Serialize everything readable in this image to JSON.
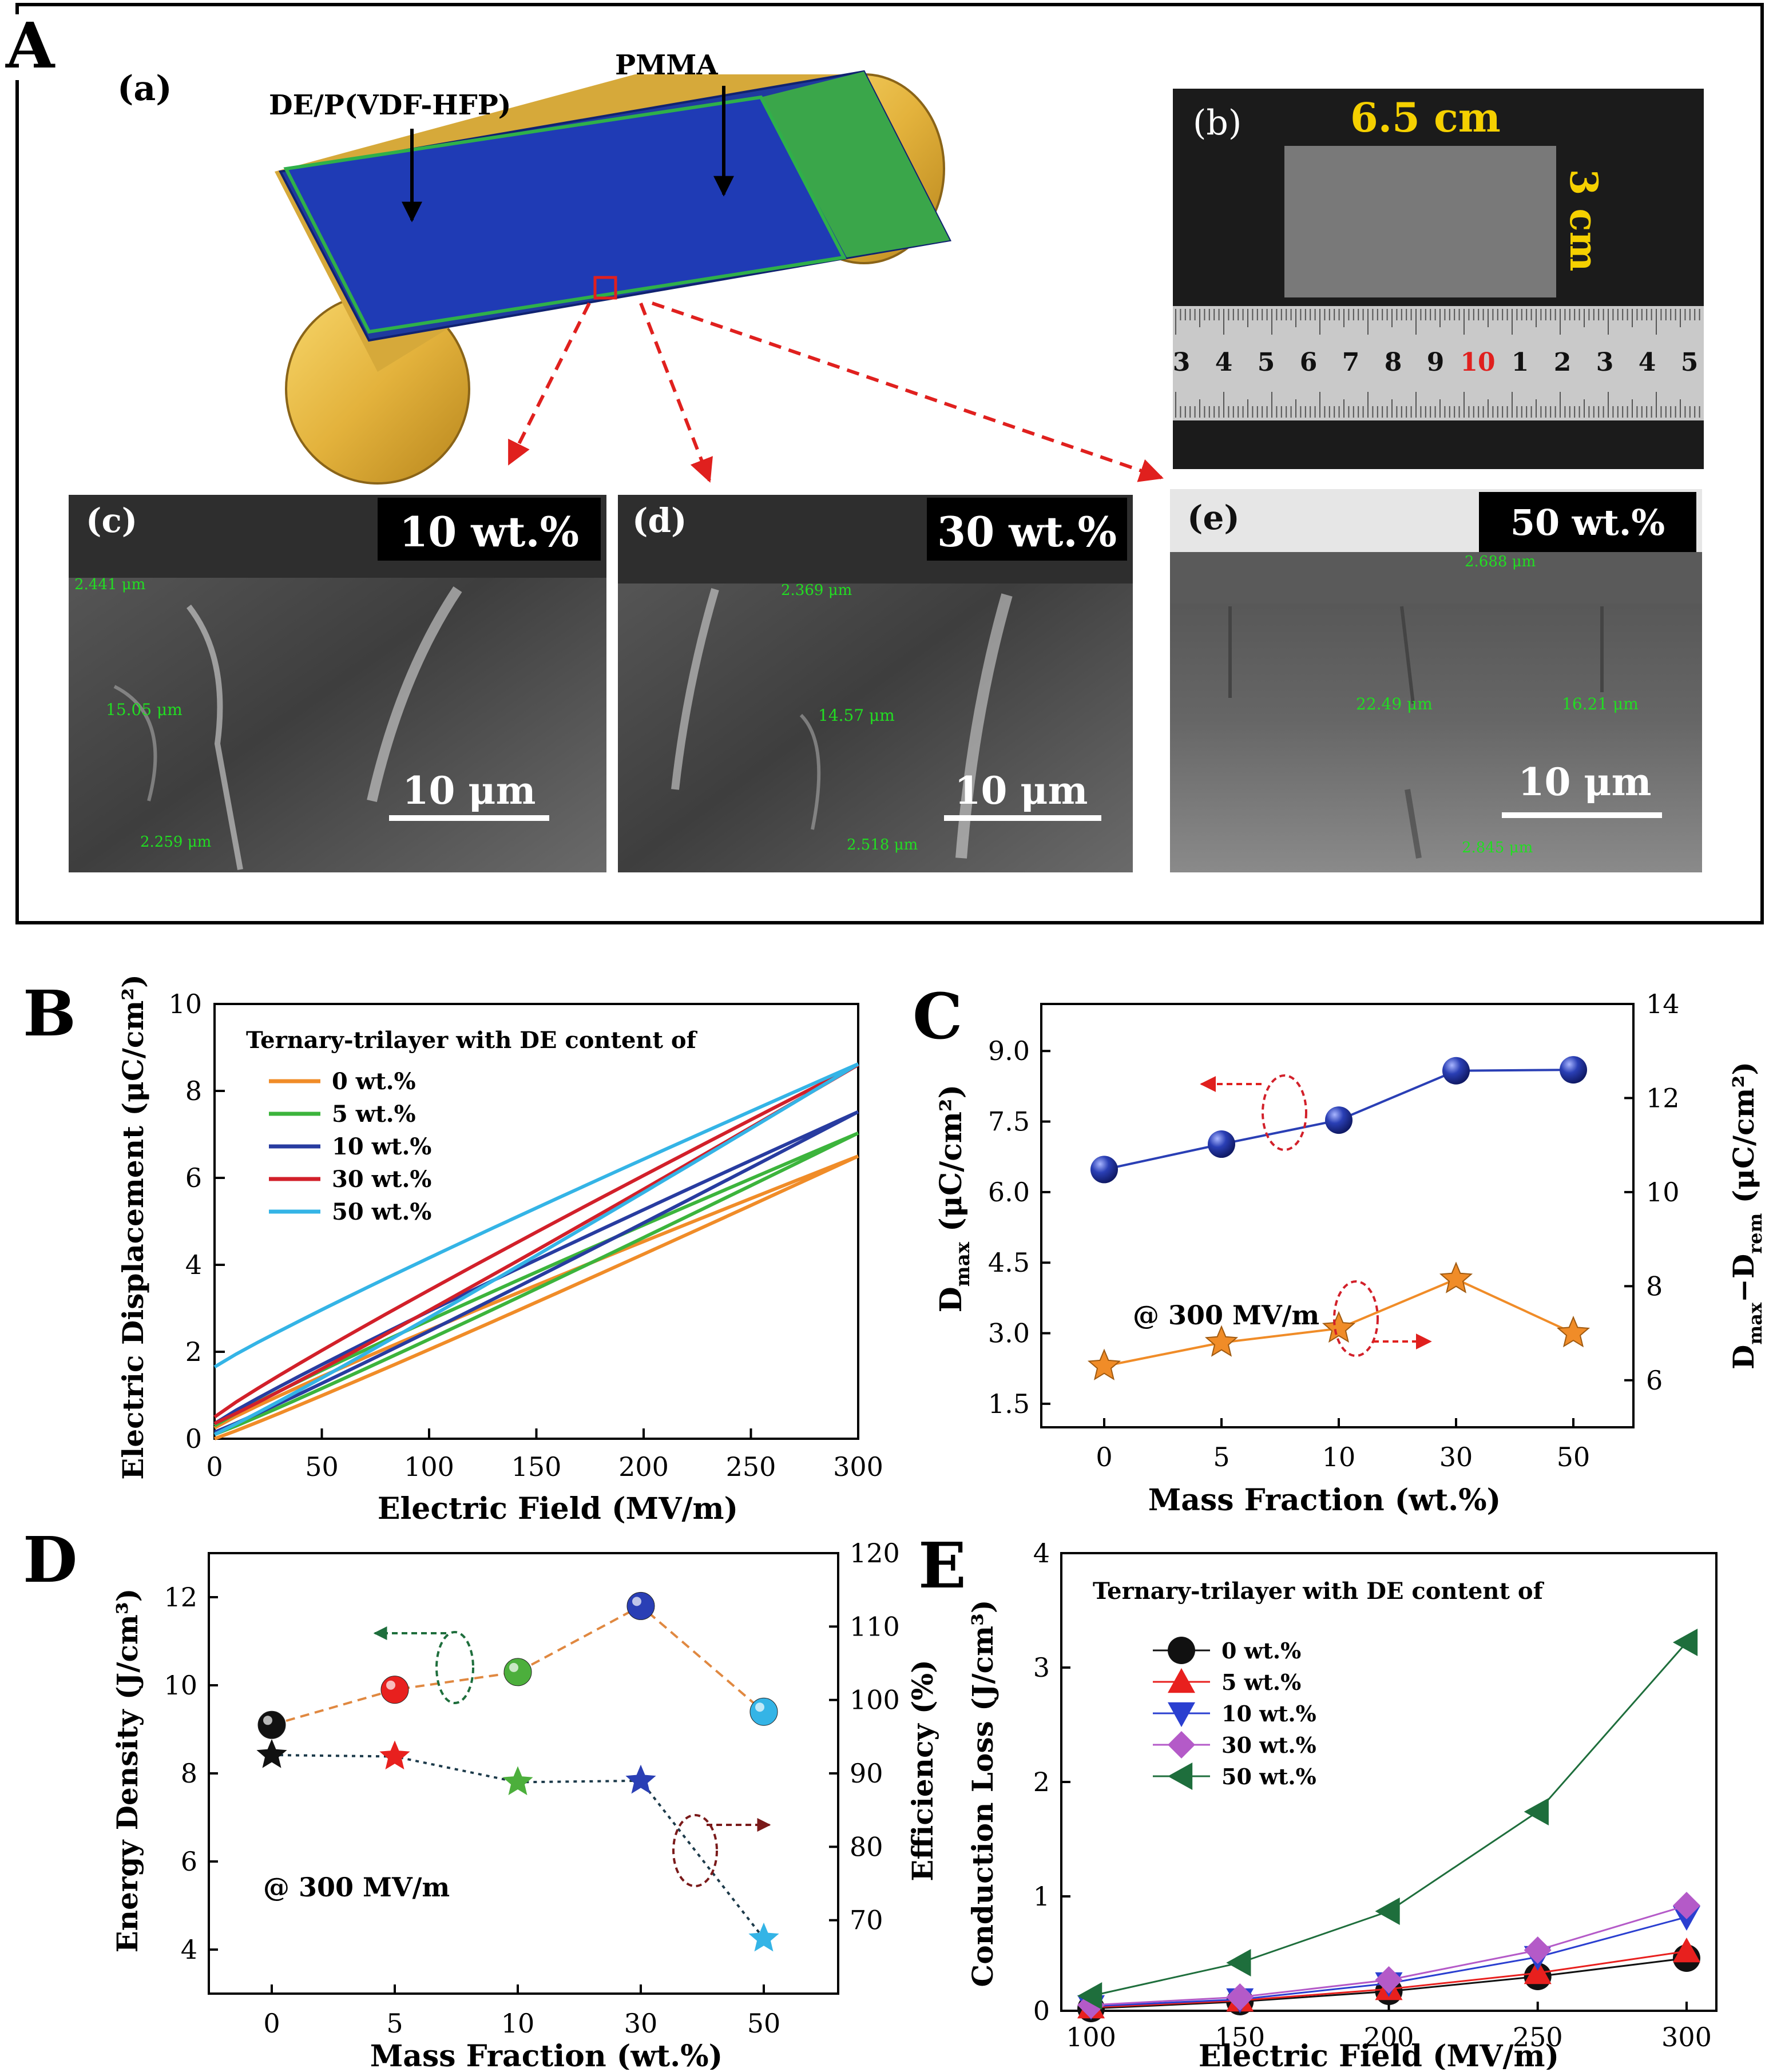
{
  "panel_labels": {
    "A": "A",
    "B": "B",
    "C": "C",
    "D": "D",
    "E": "E"
  },
  "panel_a": {
    "sub_a": "(a)",
    "sub_b": "(b)",
    "sub_c": "(c)",
    "sub_d": "(d)",
    "sub_e": "(e)",
    "label_de": "DE/P(VDF-HFP)",
    "label_pmma": "PMMA",
    "photo_width": "6.5 cm",
    "photo_height": "3 cm",
    "ruler_digits": [
      "3",
      "4",
      "5",
      "6",
      "7",
      "8",
      "9",
      "10",
      "1",
      "2",
      "3",
      "4",
      "5"
    ],
    "sem": [
      {
        "content": "10 wt.%",
        "scale": "10 μm",
        "m_top": "2.441 μm",
        "m_mid": "15.05 μm",
        "m_bot": "2.259 μm"
      },
      {
        "content": "30 wt.%",
        "scale": "10 μm",
        "m_top": "2.369 μm",
        "m_mid": "14.57 μm",
        "m_bot": "2.518 μm"
      },
      {
        "content": "50 wt.%",
        "scale": "10 μm",
        "m_top": "2.688 μm",
        "m_mid": "22.49 μm",
        "m_mid2": "16.21 μm",
        "m_bot": "2.845 μm"
      }
    ]
  },
  "colors": {
    "c0": "#f08c28",
    "c5": "#3cb43c",
    "c10": "#283ca0",
    "c30": "#d2202a",
    "c50": "#34b4e6",
    "blue_sphere": "#2a3fb5",
    "orange_star": "#f08c28",
    "dark_green": "#1e6e3c",
    "violet": "#b45ac8"
  },
  "chart_data": [
    {
      "panel": "B",
      "type": "line",
      "xlabel": "Electric Field (MV/m)",
      "ylabel": "Electric Displacement (μC/cm²)",
      "xlim": [
        0,
        300
      ],
      "ylim": [
        0,
        10
      ],
      "xticks": [
        "0",
        "50",
        "100",
        "150",
        "200",
        "250",
        "300"
      ],
      "yticks": [
        "0",
        "2",
        "4",
        "6",
        "8",
        "10"
      ],
      "legend_title": "Ternary-trilayer  with DE content of",
      "series": [
        {
          "name": "0 wt.%",
          "dmax": 6.5,
          "dr_up": 0.0,
          "dr_down": 0.25
        },
        {
          "name": "5 wt.%",
          "dmax": 7.03,
          "dr_up": 0.1,
          "dr_down": 0.3
        },
        {
          "name": "10 wt.%",
          "dmax": 7.52,
          "dr_up": 0.15,
          "dr_down": 0.35
        },
        {
          "name": "30 wt.%",
          "dmax": 8.6,
          "dr_up": 0.35,
          "dr_down": 0.5
        },
        {
          "name": "50 wt.%",
          "dmax": 8.62,
          "dr_up": 0.1,
          "dr_down": 1.65
        }
      ]
    },
    {
      "panel": "C",
      "type": "line",
      "xlabel": "Mass Fraction (wt.%)",
      "ylabel_main": "D",
      "ylabel_sub": "max",
      "ylabel_unit": " (μC/cm²)",
      "y2label_a": "D",
      "y2label_sub1": "max",
      "y2label_mid": "−D",
      "y2label_sub2": "rem",
      "y2label_unit": " (μC/cm²)",
      "categories": [
        "0",
        "5",
        "10",
        "30",
        "50"
      ],
      "ylim": [
        1,
        10
      ],
      "yticks": [
        "1.5",
        "3.0",
        "4.5",
        "6.0",
        "7.5",
        "9.0"
      ],
      "y2lim": [
        5,
        14
      ],
      "y2ticks": [
        "6",
        "8",
        "10",
        "12",
        "14"
      ],
      "annotation": "@ 300 MV/m",
      "series": [
        {
          "name": "Dmax",
          "axis": "left",
          "values": [
            6.48,
            7.02,
            7.53,
            8.58,
            8.6
          ]
        },
        {
          "name": "Dmax-Drem",
          "axis": "right",
          "values": [
            6.3,
            6.8,
            7.1,
            8.15,
            7.0
          ]
        }
      ]
    },
    {
      "panel": "D",
      "type": "scatter",
      "xlabel": "Mass Fraction (wt.%)",
      "ylabel": "Energy Density (J/cm³)",
      "y2label": "Efficiency (%)",
      "categories": [
        "0",
        "5",
        "10",
        "30",
        "50"
      ],
      "ylim": [
        3,
        13
      ],
      "yticks": [
        "4",
        "6",
        "8",
        "10",
        "12"
      ],
      "y2lim": [
        60,
        120
      ],
      "y2ticks": [
        "70",
        "80",
        "90",
        "100",
        "110",
        "120"
      ],
      "annotation": "@ 300 MV/m",
      "series": [
        {
          "name": "Energy Density",
          "axis": "left",
          "values": [
            9.1,
            9.9,
            10.3,
            11.8,
            9.4
          ]
        },
        {
          "name": "Efficiency",
          "axis": "right",
          "values": [
            92.5,
            92.3,
            88.8,
            89.0,
            67.5
          ]
        }
      ],
      "point_colors": [
        "#111111",
        "#e8201e",
        "#4caf3c",
        "#2a3fb5",
        "#34b4e6"
      ]
    },
    {
      "panel": "E",
      "type": "line",
      "xlabel": "Electric Field (MV/m)",
      "ylabel": "Conduction Loss (J/cm³)",
      "xlim": [
        90,
        310
      ],
      "ylim": [
        0,
        4
      ],
      "xticks": [
        "100",
        "150",
        "200",
        "250",
        "300"
      ],
      "yticks": [
        "0",
        "1",
        "2",
        "3",
        "4"
      ],
      "legend_title": "Ternary-trilayer  with DE content of",
      "x": [
        100,
        150,
        200,
        250,
        300
      ],
      "series": [
        {
          "name": "0 wt.%",
          "values": [
            0.02,
            0.08,
            0.17,
            0.3,
            0.46
          ]
        },
        {
          "name": "5 wt.%",
          "values": [
            0.03,
            0.09,
            0.19,
            0.33,
            0.52
          ]
        },
        {
          "name": "10 wt.%",
          "values": [
            0.04,
            0.1,
            0.24,
            0.47,
            0.82
          ]
        },
        {
          "name": "30 wt.%",
          "values": [
            0.05,
            0.12,
            0.27,
            0.53,
            0.92
          ]
        },
        {
          "name": "50 wt.%",
          "values": [
            0.13,
            0.42,
            0.87,
            1.74,
            3.22
          ]
        }
      ]
    }
  ]
}
